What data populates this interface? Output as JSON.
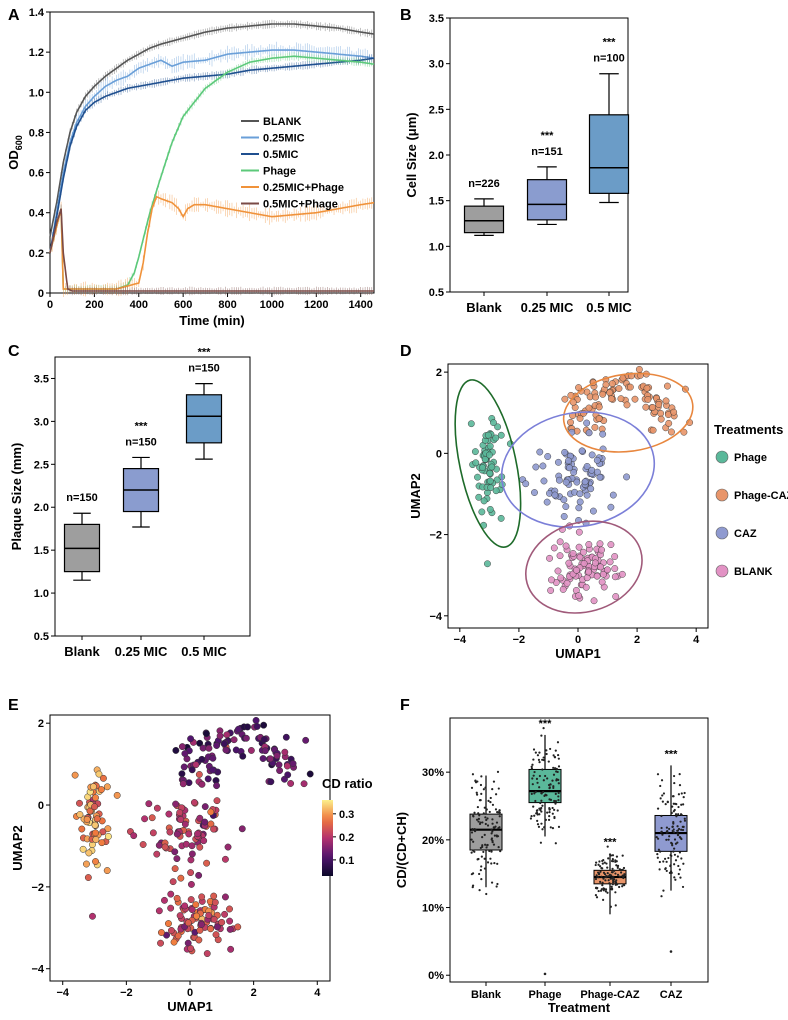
{
  "chart_data": [
    {
      "panel": "A",
      "type": "line",
      "xlabel": "Time (min)",
      "ylabel": "OD",
      "ylabel_sub": "600",
      "xlim": [
        0,
        1460
      ],
      "ylim": [
        0,
        1.4
      ],
      "xticks": [
        "0",
        "200",
        "400",
        "600",
        "800",
        "1000",
        "1200",
        "1400"
      ],
      "xtick_values": [
        0,
        200,
        400,
        600,
        800,
        1000,
        1200,
        1400
      ],
      "yticks": [
        "0",
        "0.2",
        "0.4",
        "0.6",
        "0.8",
        "1.0",
        "1.2",
        "1.4"
      ],
      "ytick_values": [
        0,
        0.2,
        0.4,
        0.6,
        0.8,
        1.0,
        1.2,
        1.4
      ],
      "series": [
        {
          "name": "BLANK",
          "color": "#555555",
          "x": [
            0,
            30,
            60,
            90,
            120,
            160,
            200,
            250,
            300,
            350,
            400,
            450,
            500,
            600,
            700,
            800,
            900,
            1000,
            1100,
            1200,
            1300,
            1400,
            1460
          ],
          "y": [
            0.28,
            0.45,
            0.65,
            0.8,
            0.9,
            0.98,
            1.03,
            1.08,
            1.12,
            1.16,
            1.19,
            1.22,
            1.24,
            1.27,
            1.3,
            1.32,
            1.33,
            1.34,
            1.34,
            1.33,
            1.32,
            1.3,
            1.29
          ]
        },
        {
          "name": "0.25MIC",
          "color": "#6a9fd8",
          "x": [
            0,
            30,
            60,
            90,
            120,
            160,
            200,
            250,
            300,
            350,
            400,
            450,
            500,
            550,
            600,
            700,
            800,
            900,
            1000,
            1100,
            1200,
            1300,
            1400,
            1460
          ],
          "y": [
            0.2,
            0.4,
            0.6,
            0.75,
            0.85,
            0.93,
            0.98,
            1.03,
            1.06,
            1.08,
            1.12,
            1.14,
            1.16,
            1.13,
            1.15,
            1.16,
            1.19,
            1.2,
            1.21,
            1.21,
            1.2,
            1.19,
            1.18,
            1.17
          ]
        },
        {
          "name": "0.5MIC",
          "color": "#1f4f8f",
          "x": [
            0,
            30,
            60,
            90,
            120,
            160,
            200,
            250,
            300,
            350,
            400,
            450,
            500,
            550,
            600,
            700,
            800,
            900,
            1000,
            1100,
            1200,
            1300,
            1400,
            1460
          ],
          "y": [
            0.2,
            0.38,
            0.57,
            0.73,
            0.83,
            0.91,
            0.95,
            0.98,
            1.0,
            1.02,
            1.03,
            1.04,
            1.05,
            1.06,
            1.07,
            1.08,
            1.09,
            1.11,
            1.12,
            1.13,
            1.14,
            1.15,
            1.16,
            1.17
          ]
        },
        {
          "name": "Phage",
          "color": "#5cc97a",
          "x": [
            0,
            50,
            60,
            100,
            200,
            300,
            350,
            380,
            400,
            450,
            500,
            550,
            600,
            700,
            800,
            900,
            1000,
            1100,
            1200,
            1300,
            1400,
            1460
          ],
          "y": [
            0.2,
            0.42,
            0.02,
            0.02,
            0.02,
            0.02,
            0.04,
            0.1,
            0.18,
            0.4,
            0.58,
            0.75,
            0.88,
            1.02,
            1.1,
            1.15,
            1.17,
            1.18,
            1.17,
            1.16,
            1.15,
            1.14
          ]
        },
        {
          "name": "0.25MIC+Phage",
          "color": "#f0923a",
          "x": [
            0,
            50,
            60,
            100,
            200,
            300,
            400,
            420,
            440,
            460,
            480,
            500,
            550,
            580,
            600,
            620,
            650,
            700,
            800,
            900,
            1000,
            1100,
            1200,
            1300,
            1400,
            1460
          ],
          "y": [
            0.2,
            0.42,
            0.02,
            0.02,
            0.02,
            0.02,
            0.05,
            0.15,
            0.3,
            0.42,
            0.48,
            0.47,
            0.45,
            0.42,
            0.38,
            0.42,
            0.44,
            0.44,
            0.42,
            0.4,
            0.38,
            0.39,
            0.4,
            0.42,
            0.44,
            0.45
          ]
        },
        {
          "name": "0.5MIC+Phage",
          "color": "#7a4a46",
          "x": [
            0,
            30,
            50,
            60,
            80,
            100,
            200,
            400,
            600,
            800,
            1000,
            1200,
            1400,
            1460
          ],
          "y": [
            0.2,
            0.35,
            0.42,
            0.2,
            0.02,
            0.01,
            0.01,
            0.01,
            0.01,
            0.01,
            0.01,
            0.01,
            0.01,
            0.01
          ]
        }
      ]
    },
    {
      "panel": "B",
      "type": "box",
      "ylabel": "Cell Size (μm)",
      "ylim": [
        0.5,
        3.5
      ],
      "yticks": [
        "0.5",
        "1.0",
        "1.5",
        "2.0",
        "2.5",
        "3.0",
        "3.5"
      ],
      "ytick_values": [
        0.5,
        1.0,
        1.5,
        2.0,
        2.5,
        3.0,
        3.5
      ],
      "categories": [
        "Blank",
        "0.25 MIC",
        "0.5 MIC"
      ],
      "colors": [
        "#9e9e9e",
        "#8a9ccf",
        "#6b9cc7"
      ],
      "boxes": [
        {
          "min": 1.12,
          "q1": 1.15,
          "median": 1.28,
          "q3": 1.44,
          "max": 1.52,
          "n": "n=226",
          "sig": ""
        },
        {
          "min": 1.24,
          "q1": 1.29,
          "median": 1.46,
          "q3": 1.73,
          "max": 1.87,
          "n": "n=151",
          "sig": "***"
        },
        {
          "min": 1.48,
          "q1": 1.58,
          "median": 1.86,
          "q3": 2.44,
          "max": 2.89,
          "n": "n=100",
          "sig": "***"
        }
      ]
    },
    {
      "panel": "C",
      "type": "box",
      "ylabel": "Plaque Size (mm)",
      "ylim": [
        0.5,
        3.75
      ],
      "yticks": [
        "0.5",
        "1.0",
        "1.5",
        "2.0",
        "2.5",
        "3.0",
        "3.5"
      ],
      "ytick_values": [
        0.5,
        1.0,
        1.5,
        2.0,
        2.5,
        3.0,
        3.5
      ],
      "categories": [
        "Blank",
        "0.25 MIC",
        "0.5 MIC"
      ],
      "colors": [
        "#9e9e9e",
        "#8a9ccf",
        "#6b9cc7"
      ],
      "boxes": [
        {
          "min": 1.15,
          "q1": 1.25,
          "median": 1.52,
          "q3": 1.8,
          "max": 1.93,
          "n": "n=150",
          "sig": ""
        },
        {
          "min": 1.77,
          "q1": 1.95,
          "median": 2.2,
          "q3": 2.45,
          "max": 2.58,
          "n": "n=150",
          "sig": "***"
        },
        {
          "min": 2.56,
          "q1": 2.75,
          "median": 3.06,
          "q3": 3.31,
          "max": 3.44,
          "n": "n=150",
          "sig": "***"
        }
      ]
    },
    {
      "panel": "D",
      "type": "scatter",
      "xlabel": "UMAP1",
      "ylabel": "UMAP2",
      "xlim": [
        -4.4,
        4.4
      ],
      "ylim": [
        -4.3,
        2.2
      ],
      "xticks": [
        "−4",
        "−2",
        "0",
        "2",
        "4"
      ],
      "xtick_values": [
        -4,
        -2,
        0,
        2,
        4
      ],
      "yticks": [
        "−4",
        "−2",
        "0",
        "2"
      ],
      "ytick_values": [
        -4,
        -2,
        0,
        2
      ],
      "legend_title": "Treatments",
      "groups": [
        {
          "name": "Phage",
          "color": "#5ab89a",
          "ellipse": "#1e6b2a",
          "cx": -3.05,
          "cy": -0.25,
          "sx": 0.45,
          "sy": 1.05,
          "n": 70
        },
        {
          "name": "Phage-CAZ",
          "color": "#e8956a",
          "ellipse": "#e8873f",
          "cx": 1.65,
          "cy": 1.0,
          "sx": 1.2,
          "sy": 0.55,
          "n": 110
        },
        {
          "name": "CAZ",
          "color": "#8f9ad0",
          "ellipse": "#7b7fd8",
          "cx": 0.0,
          "cy": -0.6,
          "sx": 1.3,
          "sy": 0.9,
          "n": 85
        },
        {
          "name": "BLANK",
          "color": "#e292c4",
          "ellipse": "#a05a7a",
          "cx": 0.2,
          "cy": -2.8,
          "sx": 0.95,
          "sy": 0.65,
          "n": 95
        }
      ]
    },
    {
      "panel": "E",
      "type": "scatter",
      "xlabel": "UMAP1",
      "ylabel": "UMAP2",
      "xlim": [
        -4.4,
        4.4
      ],
      "ylim": [
        -4.3,
        2.2
      ],
      "xticks": [
        "−4",
        "−2",
        "0",
        "2",
        "4"
      ],
      "xtick_values": [
        -4,
        -2,
        0,
        2,
        4
      ],
      "yticks": [
        "−4",
        "−2",
        "0",
        "2"
      ],
      "ytick_values": [
        -4,
        -2,
        0,
        2
      ],
      "colorbar_title": "CD ratio",
      "colorbar_ticks": [
        "0.1",
        "0.2",
        "0.3"
      ],
      "colorbar_values": [
        0.1,
        0.2,
        0.3
      ],
      "colorbar_range": [
        0.03,
        0.36
      ],
      "group_ratio": [
        0.29,
        0.12,
        0.2,
        0.22
      ]
    },
    {
      "panel": "F",
      "type": "box",
      "xlabel": "Treatment",
      "ylabel": "CD/(CD+CH)",
      "ylim": [
        -0.01,
        0.38
      ],
      "yticks": [
        "0%",
        "10%",
        "20%",
        "30%"
      ],
      "ytick_values": [
        0,
        0.1,
        0.2,
        0.3
      ],
      "categories": [
        "Blank",
        "Phage",
        "Phage-CAZ",
        "CAZ"
      ],
      "colors": [
        "#9e9e9e",
        "#5ab89a",
        "#e8956a",
        "#8f9ad0"
      ],
      "boxes": [
        {
          "min": 0.13,
          "q1": 0.185,
          "median": 0.215,
          "q3": 0.238,
          "max": 0.295,
          "sig": "",
          "n_points": 120
        },
        {
          "min": 0.205,
          "q1": 0.255,
          "median": 0.272,
          "q3": 0.304,
          "max": 0.355,
          "sig": "***",
          "n_points": 120
        },
        {
          "min": 0.09,
          "q1": 0.135,
          "median": 0.145,
          "q3": 0.155,
          "max": 0.18,
          "sig": "***",
          "n_points": 120
        },
        {
          "min": 0.125,
          "q1": 0.183,
          "median": 0.21,
          "q3": 0.236,
          "max": 0.31,
          "sig": "***",
          "n_points": 120
        }
      ]
    }
  ],
  "panel_labels": [
    "A",
    "B",
    "C",
    "D",
    "E",
    "F"
  ]
}
